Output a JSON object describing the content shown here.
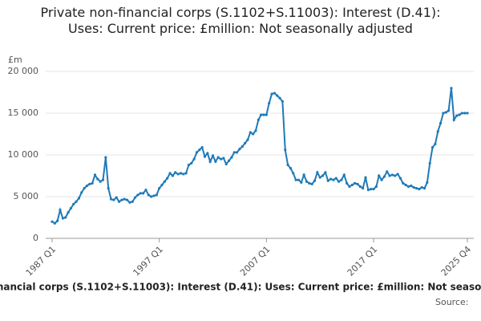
{
  "chart_data": {
    "type": "line",
    "title": "Private non-financial corps (S.1102+S.11003): Interest (D.41): Uses: Current price: £million: Not seasonally adjusted",
    "y_label": "£m",
    "source": "Source:",
    "categories": [
      "1987 Q1",
      null,
      null,
      null,
      null,
      null,
      null,
      null,
      null,
      null,
      null,
      null,
      null,
      null,
      null,
      null,
      null,
      null,
      null,
      null,
      null,
      null,
      null,
      null,
      null,
      null,
      null,
      null,
      null,
      null,
      null,
      null,
      null,
      null,
      null,
      null,
      null,
      null,
      null,
      null,
      "1997 Q1",
      null,
      null,
      null,
      null,
      null,
      null,
      null,
      null,
      null,
      null,
      null,
      null,
      null,
      null,
      null,
      null,
      null,
      null,
      null,
      null,
      null,
      null,
      null,
      null,
      null,
      null,
      null,
      null,
      null,
      null,
      null,
      null,
      null,
      null,
      null,
      null,
      null,
      null,
      null,
      "2007 Q1",
      null,
      null,
      null,
      null,
      null,
      null,
      null,
      null,
      null,
      null,
      null,
      null,
      null,
      null,
      null,
      null,
      null,
      null,
      null,
      null,
      null,
      null,
      null,
      null,
      null,
      null,
      null,
      null,
      null,
      null,
      null,
      null,
      null,
      null,
      null,
      null,
      null,
      null,
      null,
      "2017 Q1",
      null,
      null,
      null,
      null,
      null,
      null,
      null,
      null,
      null,
      null,
      null,
      null,
      null,
      null,
      null,
      null,
      null,
      null,
      null,
      null,
      null,
      null,
      null,
      null,
      null,
      null,
      null,
      null,
      null,
      null,
      null,
      null,
      null,
      null,
      "2025 Q4"
    ],
    "series": [
      {
        "name": "Private non-financial corps (S.1102+S.11003): Interest (D.41): Uses: Current price: £million: Not seasonally adjusted",
        "color": "#1f7ab8",
        "values": [
          2000,
          1800,
          2100,
          3400,
          2400,
          2500,
          3100,
          3600,
          4100,
          4400,
          4800,
          5500,
          6000,
          6300,
          6500,
          6600,
          7600,
          7100,
          6800,
          7000,
          9700,
          6000,
          4700,
          4600,
          4900,
          4400,
          4600,
          4700,
          4600,
          4300,
          4400,
          4900,
          5200,
          5400,
          5400,
          5800,
          5200,
          5000,
          5100,
          5200,
          6000,
          6400,
          6800,
          7200,
          7800,
          7500,
          7900,
          7700,
          7800,
          7700,
          7800,
          8800,
          9000,
          9500,
          10300,
          10600,
          10900,
          9800,
          10200,
          9200,
          9900,
          9200,
          9700,
          9500,
          9600,
          8900,
          9300,
          9700,
          10300,
          10300,
          10700,
          11000,
          11400,
          11800,
          12700,
          12500,
          12900,
          14200,
          14800,
          14800,
          14800,
          16200,
          17300,
          17400,
          17100,
          16800,
          16400,
          10600,
          8800,
          8400,
          7800,
          7000,
          7000,
          6700,
          7600,
          6800,
          6600,
          6500,
          6900,
          7900,
          7300,
          7500,
          7900,
          6900,
          7100,
          7000,
          7200,
          6800,
          7000,
          7600,
          6600,
          6200,
          6400,
          6600,
          6500,
          6200,
          6000,
          7300,
          5800,
          5900,
          5900,
          6200,
          7500,
          7000,
          7400,
          8000,
          7500,
          7600,
          7500,
          7700,
          7200,
          6600,
          6400,
          6200,
          6300,
          6100,
          6000,
          5900,
          6100,
          6000,
          6700,
          9000,
          10900,
          11300,
          12800,
          13800,
          15000,
          15100,
          15300,
          18000,
          14200,
          14700,
          14800,
          15000,
          15000,
          15000
        ]
      }
    ],
    "ylim": [
      0,
      20000
    ],
    "yticks": [
      0,
      {
        "value": 5000,
        "label": "5 000"
      },
      {
        "value": 10000,
        "label": "10 000"
      },
      {
        "value": 15000,
        "label": "15 000"
      },
      {
        "value": 20000,
        "label": "20 000"
      }
    ],
    "grid": true
  }
}
